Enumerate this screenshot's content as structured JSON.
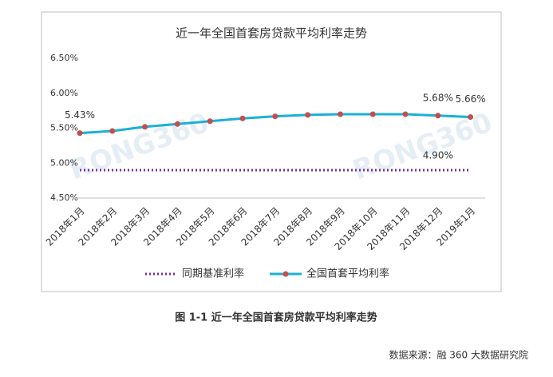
{
  "chart_data": {
    "type": "line",
    "title": "近一年全国首套房贷款平均利率走势",
    "categories": [
      "2018年1月",
      "2018年2月",
      "2018年3月",
      "2018年4月",
      "2018年5月",
      "2018年6月",
      "2018年7月",
      "2018年8月",
      "2018年9月",
      "2018年10月",
      "2018年11月",
      "2018年12月",
      "2019年1月"
    ],
    "series": [
      {
        "name": "同期基准利率",
        "color": "#7030a0",
        "style": "dotted",
        "values": [
          4.9,
          4.9,
          4.9,
          4.9,
          4.9,
          4.9,
          4.9,
          4.9,
          4.9,
          4.9,
          4.9,
          4.9,
          4.9
        ],
        "value_labels": [
          null,
          null,
          null,
          null,
          null,
          null,
          null,
          null,
          null,
          null,
          null,
          "4.90%",
          null
        ]
      },
      {
        "name": "全国首套平均利率",
        "color": "#1ab0d8",
        "marker_color": "#c0504d",
        "style": "solid",
        "values": [
          5.43,
          5.46,
          5.52,
          5.56,
          5.6,
          5.64,
          5.67,
          5.69,
          5.7,
          5.7,
          5.7,
          5.68,
          5.66
        ],
        "value_labels": [
          "5.43%",
          null,
          null,
          null,
          null,
          null,
          null,
          null,
          null,
          null,
          null,
          "5.68%",
          "5.66%"
        ]
      }
    ],
    "ylim": [
      4.5,
      6.5
    ],
    "yticks": [
      {
        "value": 4.5,
        "label": "4.50%"
      },
      {
        "value": 5.0,
        "label": "5.00%"
      },
      {
        "value": 5.5,
        "label": "5.50%"
      },
      {
        "value": 6.0,
        "label": "6.00%"
      },
      {
        "value": 6.5,
        "label": "6.50%"
      }
    ],
    "grid": false,
    "legend": "bottom",
    "watermark": "RONG360"
  },
  "caption": "图 1-1  近一年全国首套房贷款平均利率走势",
  "source": "数据来源：融 360 大数据研究院"
}
